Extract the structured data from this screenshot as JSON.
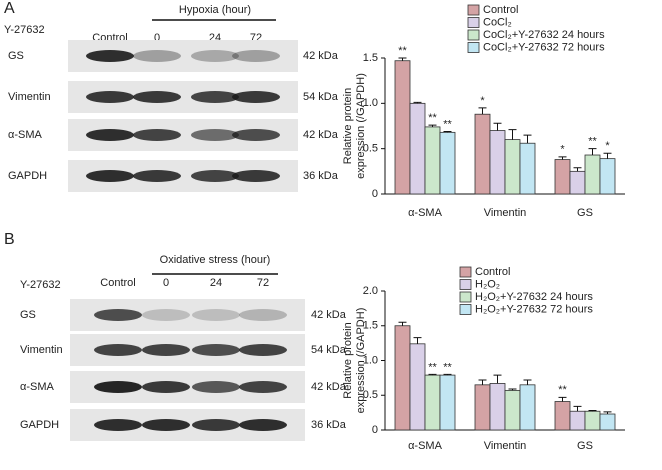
{
  "blots": [
    {
      "label": "A",
      "treatment": "Y-27632",
      "control": "Control",
      "group": "Hypoxia (hour)",
      "lanes": [
        "0",
        "24",
        "72"
      ],
      "rows": [
        {
          "name": "GS",
          "size": "42 kDa"
        },
        {
          "name": "Vimentin",
          "size": "54 kDa"
        },
        {
          "name": "α-SMA",
          "size": "42 kDa"
        },
        {
          "name": "GAPDH",
          "size": "36 kDa"
        }
      ]
    },
    {
      "label": "B",
      "treatment": "Y-27632",
      "control": "Control",
      "group": "Oxidative stress (hour)",
      "lanes": [
        "0",
        "24",
        "72"
      ],
      "rows": [
        {
          "name": "GS",
          "size": "42 kDa"
        },
        {
          "name": "Vimentin",
          "size": "54 kDa"
        },
        {
          "name": "α-SMA",
          "size": "42 kDa"
        },
        {
          "name": "GAPDH",
          "size": "36 kDa"
        }
      ]
    }
  ],
  "chart_data": [
    {
      "type": "bar",
      "ylabel": [
        "Relative protein",
        "expression (/GAPDH)"
      ],
      "categories": [
        "α-SMA",
        "Vimentin",
        "GS"
      ],
      "ylim": [
        0,
        1.5
      ],
      "yticks": [
        0,
        0.5,
        {
          "value": 1,
          "label": "1.0"
        },
        1.5
      ],
      "series": [
        {
          "name": "Control",
          "color": "#d4a3a5",
          "values": [
            1.47,
            0.88,
            0.38
          ],
          "errors": [
            0.03,
            0.07,
            0.03
          ],
          "annotations": [
            "**",
            "*",
            "*"
          ]
        },
        {
          "name": "CoCl₂",
          "color": "#d9d0e8",
          "values": [
            1.0,
            0.7,
            0.25
          ],
          "errors": [
            0.01,
            0.08,
            0.04
          ],
          "annotations": [
            null,
            null,
            null
          ]
        },
        {
          "name": "CoCl₂+Y-27632 24 hours",
          "color": "#cbe7cb",
          "values": [
            0.74,
            0.6,
            0.43
          ],
          "errors": [
            0.02,
            0.11,
            0.07
          ],
          "annotations": [
            "**",
            null,
            "**"
          ]
        },
        {
          "name": "CoCl₂+Y-27632 72 hours",
          "color": "#c2e6f3",
          "values": [
            0.68,
            0.56,
            0.39
          ],
          "errors": [
            0.01,
            0.09,
            0.06
          ],
          "annotations": [
            "**",
            null,
            "*"
          ]
        }
      ]
    },
    {
      "type": "bar",
      "ylabel": [
        "Relative protein",
        "expression (/GAPDH)"
      ],
      "categories": [
        "α-SMA",
        "Vimentin",
        "GS"
      ],
      "ylim": [
        0,
        2
      ],
      "yticks": [
        0,
        0.5,
        {
          "value": 1,
          "label": "1.0"
        },
        1.5,
        {
          "value": 2,
          "label": "2.0"
        }
      ],
      "series": [
        {
          "name": "Control",
          "color": "#d4a3a5",
          "values": [
            1.5,
            0.65,
            0.41
          ],
          "errors": [
            0.05,
            0.07,
            0.06
          ],
          "annotations": [
            null,
            null,
            "**"
          ]
        },
        {
          "name": "H₂O₂",
          "color": "#d9d0e8",
          "values": [
            1.24,
            0.67,
            0.27
          ],
          "errors": [
            0.09,
            0.12,
            0.07
          ],
          "annotations": [
            null,
            null,
            null
          ]
        },
        {
          "name": "H₂O₂+Y-27632 24 hours",
          "color": "#cbe7cb",
          "values": [
            0.79,
            0.57,
            0.27
          ],
          "errors": [
            0.01,
            0.02,
            0.01
          ],
          "annotations": [
            "**",
            null,
            null
          ]
        },
        {
          "name": "H₂O₂+Y-27632 72 hours",
          "color": "#c2e6f3",
          "values": [
            0.79,
            0.65,
            0.23
          ],
          "errors": [
            0.01,
            0.07,
            0.03
          ],
          "annotations": [
            "**",
            null,
            null
          ]
        }
      ]
    }
  ]
}
